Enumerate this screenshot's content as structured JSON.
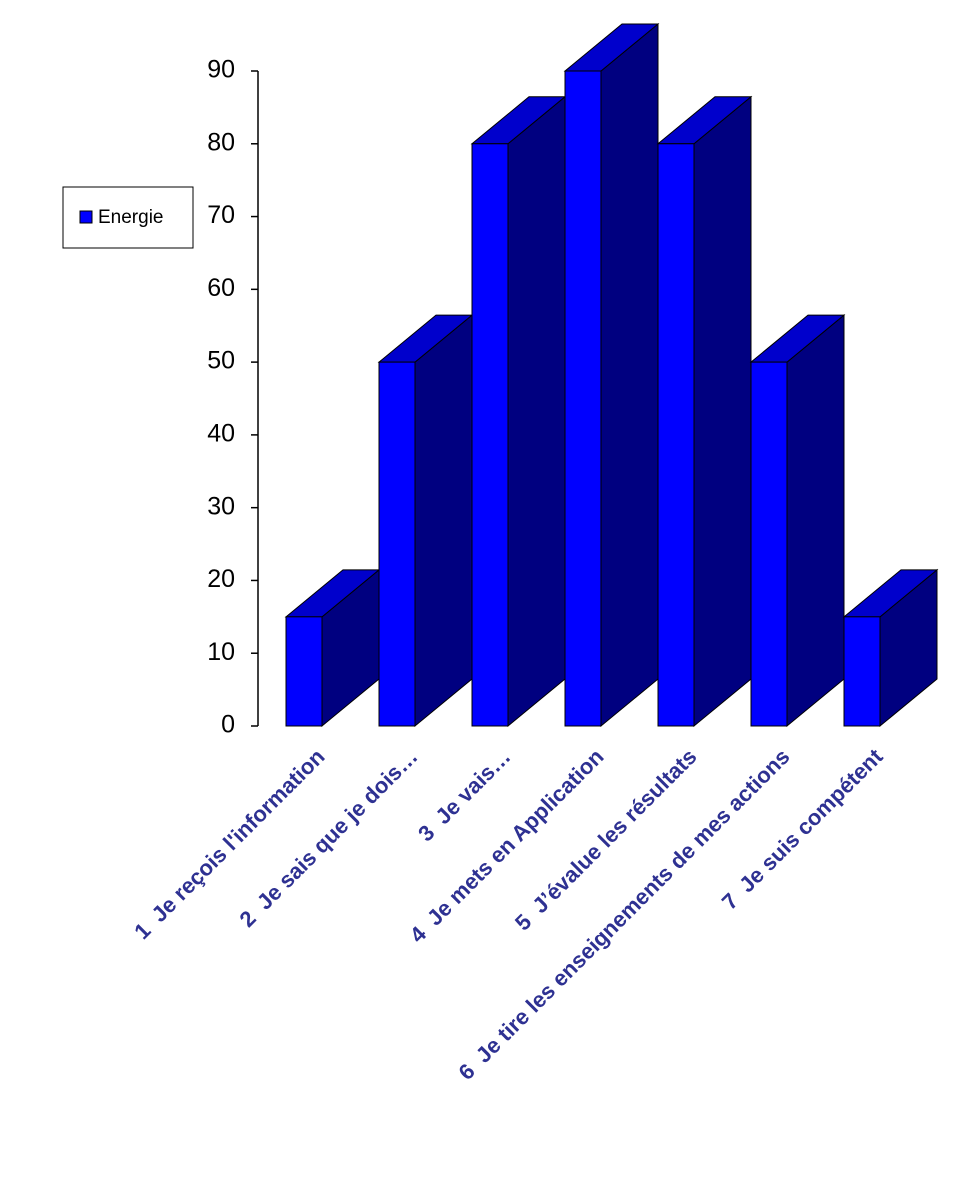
{
  "chart_data": {
    "type": "bar3d",
    "categories": [
      "1  Je reçois l'information",
      "2  Je sais que je dois…",
      "3  Je vais…",
      "4  Je mets en Application",
      "5  J’évalue les résultats",
      "6  Je tire les enseignements de mes actions",
      "7  Je suis compétent"
    ],
    "series": [
      {
        "name": "Energie",
        "color": "#0000ff",
        "values": [
          15,
          50,
          80,
          90,
          80,
          50,
          15
        ]
      }
    ],
    "ylim": [
      0,
      90
    ],
    "yticks": [
      0,
      10,
      20,
      30,
      40,
      50,
      60,
      70,
      80,
      90
    ],
    "grid": false,
    "legend": "left"
  }
}
